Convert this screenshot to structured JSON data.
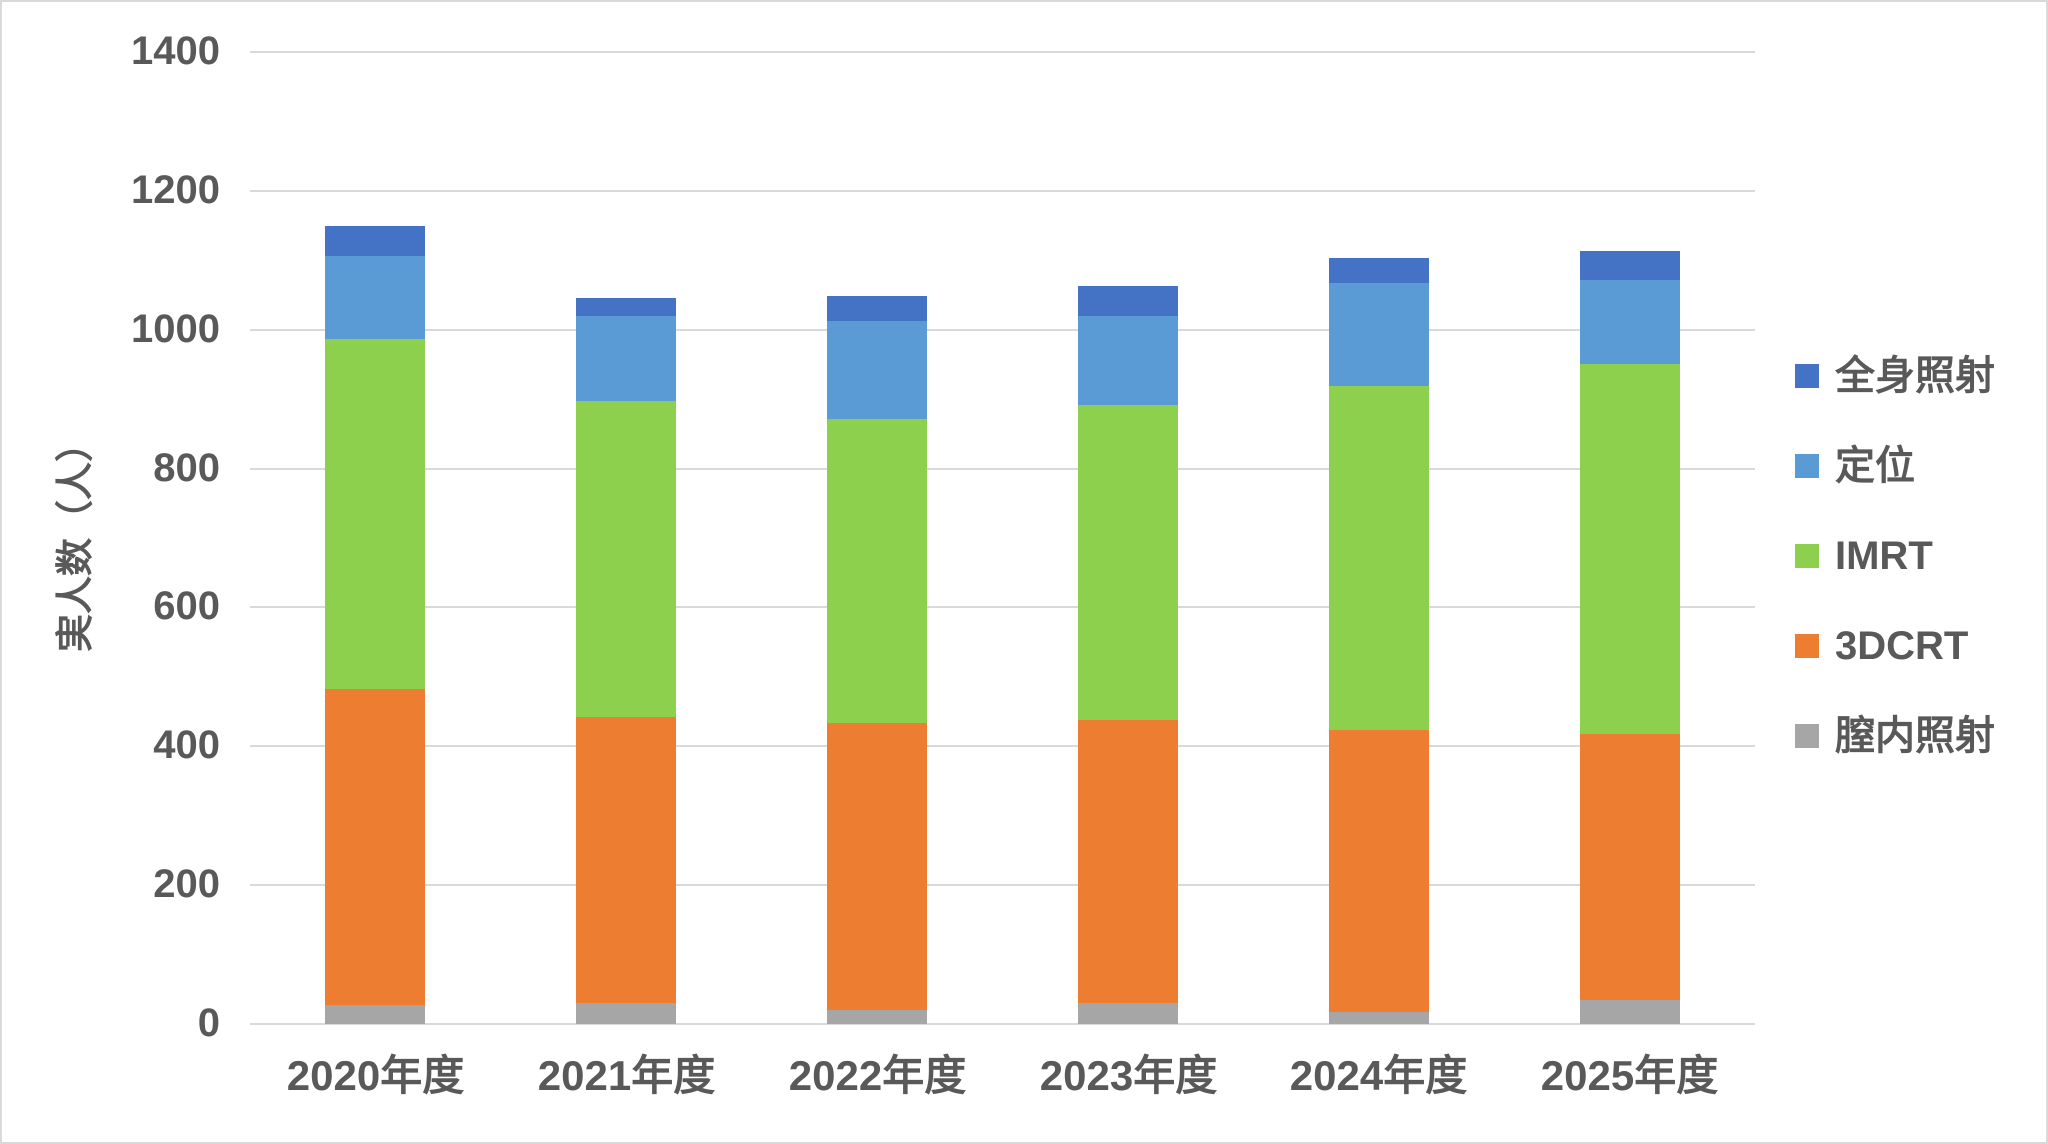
{
  "chart_data": {
    "type": "bar",
    "stacked": true,
    "title": "",
    "xlabel": "",
    "ylabel": "実人数（人）",
    "categories": [
      "2020年度",
      "2021年度",
      "2022年度",
      "2023年度",
      "2024年度",
      "2025年度"
    ],
    "series": [
      {
        "name": "膣内照射",
        "color": "#a6a6a6",
        "values": [
          27,
          30,
          20,
          30,
          18,
          34
        ]
      },
      {
        "name": "3DCRT",
        "color": "#ed7d31",
        "values": [
          456,
          412,
          414,
          408,
          405,
          384
        ]
      },
      {
        "name": "IMRT",
        "color": "#8dd04e",
        "values": [
          503,
          456,
          438,
          454,
          496,
          532
        ]
      },
      {
        "name": "定位",
        "color": "#5b9bd5",
        "values": [
          120,
          122,
          141,
          128,
          149,
          122
        ]
      },
      {
        "name": "全身照射",
        "color": "#4472c4",
        "values": [
          43,
          26,
          35,
          43,
          36,
          42
        ]
      }
    ],
    "totals": [
      1149,
      1046,
      1048,
      1063,
      1104,
      1114
    ],
    "legend_order": [
      "全身照射",
      "定位",
      "IMRT",
      "3DCRT",
      "膣内照射"
    ],
    "legend_position": "right",
    "ylim": [
      0,
      1400
    ],
    "ytick_step": 200,
    "yticks": [
      0,
      200,
      400,
      600,
      800,
      1000,
      1200,
      1400
    ],
    "grid": true,
    "grid_color": "#d9d9d9",
    "text_color": "#595959",
    "frame_border_color": "#d9d9d9",
    "background_color": "#ffffff"
  }
}
